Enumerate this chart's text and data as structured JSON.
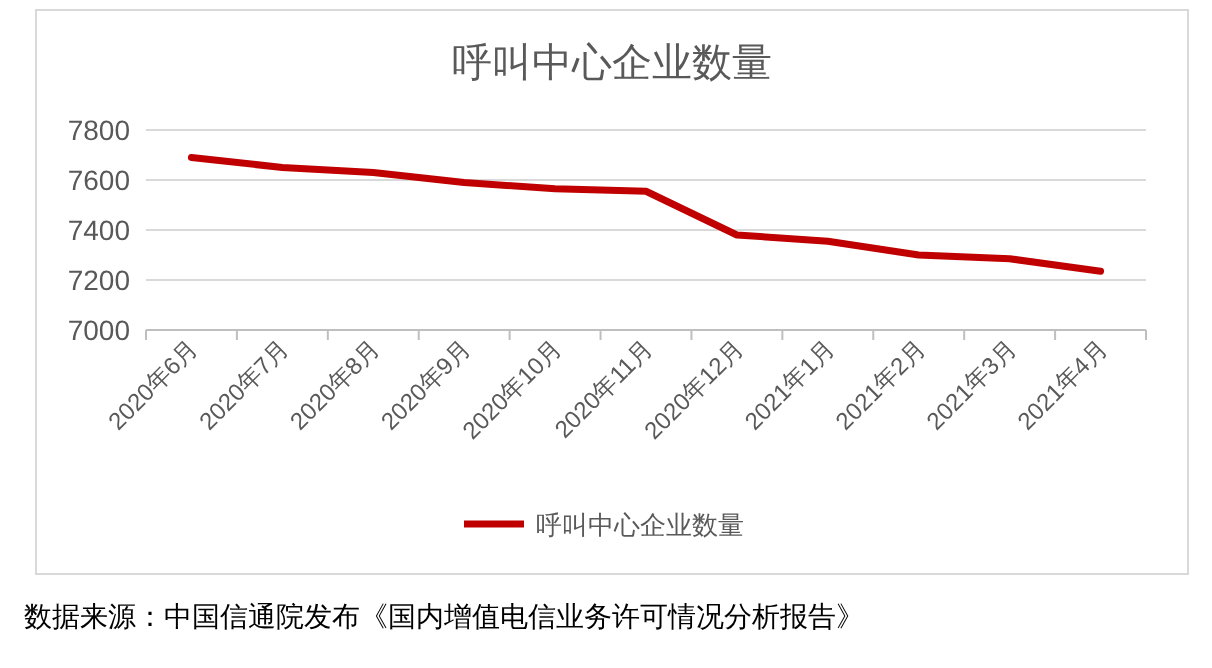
{
  "chart_data": {
    "type": "line",
    "title": "呼叫中心企业数量",
    "categories": [
      "2020年6月",
      "2020年7月",
      "2020年8月",
      "2020年9月",
      "2020年10月",
      "2020年11月",
      "2020年12月",
      "2021年1月",
      "2021年2月",
      "2021年3月",
      "2021年4月"
    ],
    "series": [
      {
        "name": "呼叫中心企业数量",
        "color": "#c00000",
        "values": [
          7690,
          7650,
          7630,
          7590,
          7565,
          7555,
          7380,
          7355,
          7300,
          7285,
          7235
        ]
      }
    ],
    "ylim": [
      7000,
      7800
    ],
    "yticks": [
      7000,
      7200,
      7400,
      7600,
      7800
    ],
    "grid": "y",
    "legend": "bottom",
    "marker": "none",
    "line_style": "solid",
    "annotations": [
      "数据来源：中国信通院发布《国内增值电信业务许可情况分析报告》"
    ]
  }
}
